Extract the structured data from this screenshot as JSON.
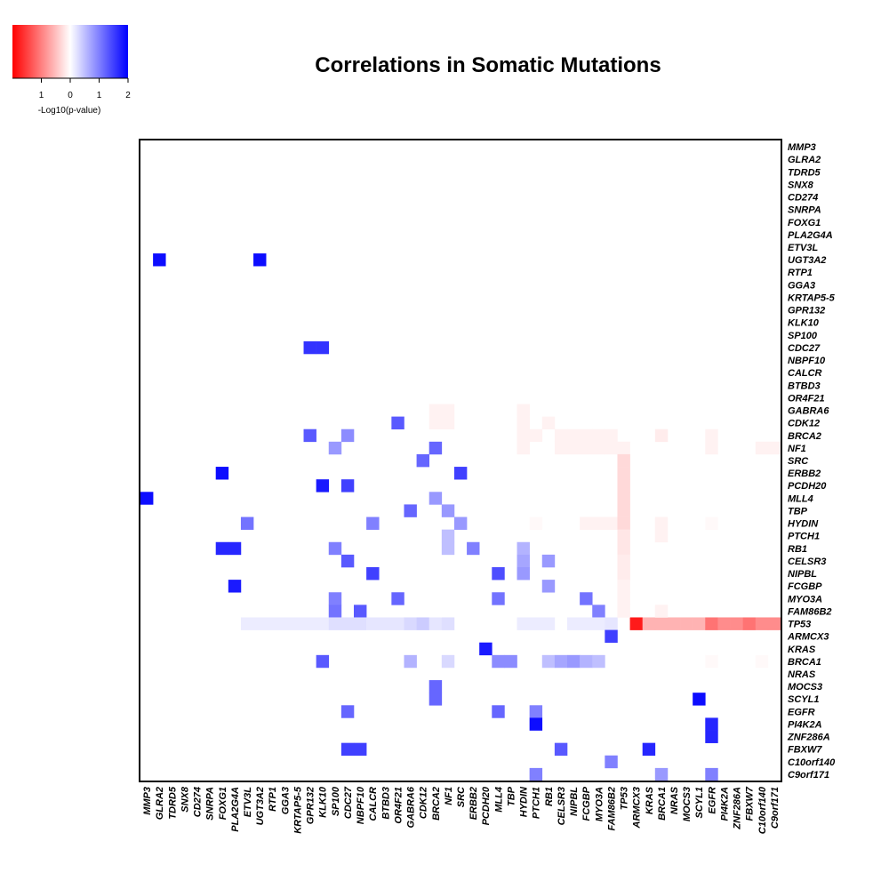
{
  "chart_data": {
    "type": "heatmap",
    "title": "Correlations in Somatic Mutations",
    "genes": [
      "MMP3",
      "GLRA2",
      "TDRD5",
      "SNX8",
      "CD274",
      "SNRPA",
      "FOXG1",
      "PLA2G4A",
      "ETV3L",
      "UGT3A2",
      "RTP1",
      "GGA3",
      "KRTAP5-5",
      "GPR132",
      "KLK10",
      "SP100",
      "CDC27",
      "NBPF10",
      "CALCR",
      "BTBD3",
      "OR4F21",
      "GABRA6",
      "CDK12",
      "BRCA2",
      "NF1",
      "SRC",
      "ERBB2",
      "PCDH20",
      "MLL4",
      "TBP",
      "HYDIN",
      "PTCH1",
      "RB1",
      "CELSR3",
      "NIPBL",
      "FCGBP",
      "MYO3A",
      "FAM86B2",
      "TP53",
      "ARMCX3",
      "KRAS",
      "BRCA1",
      "NRAS",
      "MOCS3",
      "SCYL1",
      "EGFR",
      "PI4K2A",
      "ZNF286A",
      "FBXW7",
      "C10orf140",
      "C9orf171"
    ],
    "colorscale": {
      "label": "-Log10(p-value)",
      "ticks": [
        "1",
        "0",
        "1",
        "2"
      ],
      "range": [
        -2,
        2
      ],
      "negative_color": "#ff0000",
      "zero_color": "#ffffff",
      "positive_color": "#0000ff"
    },
    "cells": [
      {
        "row": "UGT3A2",
        "col": "GLRA2",
        "value": 1.9
      },
      {
        "row": "UGT3A2",
        "col": "UGT3A2",
        "value": 1.9
      },
      {
        "row": "CDC27",
        "col": "GPR132",
        "value": 1.6
      },
      {
        "row": "CDC27",
        "col": "KLK10",
        "value": 1.6
      },
      {
        "row": "CDK12",
        "col": "OR4F21",
        "value": 1.3
      },
      {
        "row": "BRCA2",
        "col": "GPR132",
        "value": 1.3
      },
      {
        "row": "BRCA2",
        "col": "CDC27",
        "value": 0.9
      },
      {
        "row": "NF1",
        "col": "SP100",
        "value": 0.8
      },
      {
        "row": "NF1",
        "col": "BRCA2",
        "value": 1.2
      },
      {
        "row": "SRC",
        "col": "CDK12",
        "value": 1.2
      },
      {
        "row": "ERBB2",
        "col": "FOXG1",
        "value": 1.9
      },
      {
        "row": "ERBB2",
        "col": "SRC",
        "value": 1.5
      },
      {
        "row": "PCDH20",
        "col": "KLK10",
        "value": 1.8
      },
      {
        "row": "PCDH20",
        "col": "CDC27",
        "value": 1.5
      },
      {
        "row": "MLL4",
        "col": "MMP3",
        "value": 1.9
      },
      {
        "row": "MLL4",
        "col": "BRCA2",
        "value": 0.8
      },
      {
        "row": "TBP",
        "col": "GABRA6",
        "value": 1.2
      },
      {
        "row": "TBP",
        "col": "NF1",
        "value": 0.8
      },
      {
        "row": "HYDIN",
        "col": "ETV3L",
        "value": 1.1
      },
      {
        "row": "HYDIN",
        "col": "CALCR",
        "value": 1.0
      },
      {
        "row": "HYDIN",
        "col": "SRC",
        "value": 0.8
      },
      {
        "row": "PTCH1",
        "col": "NF1",
        "value": 0.5
      },
      {
        "row": "RB1",
        "col": "FOXG1",
        "value": 1.7
      },
      {
        "row": "RB1",
        "col": "PLA2G4A",
        "value": 1.7
      },
      {
        "row": "RB1",
        "col": "SP100",
        "value": 1.0
      },
      {
        "row": "RB1",
        "col": "NF1",
        "value": 0.5
      },
      {
        "row": "RB1",
        "col": "ERBB2",
        "value": 1.0
      },
      {
        "row": "RB1",
        "col": "HYDIN",
        "value": 0.6
      },
      {
        "row": "CELSR3",
        "col": "CDC27",
        "value": 1.3
      },
      {
        "row": "CELSR3",
        "col": "HYDIN",
        "value": 0.7
      },
      {
        "row": "CELSR3",
        "col": "RB1",
        "value": 0.8
      },
      {
        "row": "NIPBL",
        "col": "CALCR",
        "value": 1.5
      },
      {
        "row": "NIPBL",
        "col": "MLL4",
        "value": 1.4
      },
      {
        "row": "NIPBL",
        "col": "HYDIN",
        "value": 0.8
      },
      {
        "row": "FCGBP",
        "col": "PLA2G4A",
        "value": 1.8
      },
      {
        "row": "FCGBP",
        "col": "RB1",
        "value": 0.8
      },
      {
        "row": "MYO3A",
        "col": "SP100",
        "value": 1.0
      },
      {
        "row": "MYO3A",
        "col": "OR4F21",
        "value": 1.2
      },
      {
        "row": "MYO3A",
        "col": "MLL4",
        "value": 1.1
      },
      {
        "row": "MYO3A",
        "col": "FCGBP",
        "value": 1.1
      },
      {
        "row": "FAM86B2",
        "col": "SP100",
        "value": 1.1
      },
      {
        "row": "FAM86B2",
        "col": "NBPF10",
        "value": 1.3
      },
      {
        "row": "FAM86B2",
        "col": "MYO3A",
        "value": 1.0
      },
      {
        "row": "TP53",
        "col": "ETV3L",
        "value": 0.15
      },
      {
        "row": "TP53",
        "col": "UGT3A2",
        "value": 0.15
      },
      {
        "row": "TP53",
        "col": "RTP1",
        "value": 0.15
      },
      {
        "row": "TP53",
        "col": "GGA3",
        "value": 0.15
      },
      {
        "row": "TP53",
        "col": "KRTAP5-5",
        "value": 0.15
      },
      {
        "row": "TP53",
        "col": "GPR132",
        "value": 0.15
      },
      {
        "row": "TP53",
        "col": "KLK10",
        "value": 0.15
      },
      {
        "row": "TP53",
        "col": "SP100",
        "value": 0.25
      },
      {
        "row": "TP53",
        "col": "CDC27",
        "value": 0.25
      },
      {
        "row": "TP53",
        "col": "NBPF10",
        "value": 0.25
      },
      {
        "row": "TP53",
        "col": "CALCR",
        "value": 0.2
      },
      {
        "row": "TP53",
        "col": "BTBD3",
        "value": 0.2
      },
      {
        "row": "TP53",
        "col": "OR4F21",
        "value": 0.2
      },
      {
        "row": "TP53",
        "col": "GABRA6",
        "value": 0.3
      },
      {
        "row": "TP53",
        "col": "CDK12",
        "value": 0.4
      },
      {
        "row": "TP53",
        "col": "BRCA2",
        "value": 0.2
      },
      {
        "row": "TP53",
        "col": "NF1",
        "value": 0.25
      },
      {
        "row": "TP53",
        "col": "HYDIN",
        "value": 0.15
      },
      {
        "row": "TP53",
        "col": "PTCH1",
        "value": 0.15
      },
      {
        "row": "TP53",
        "col": "RB1",
        "value": 0.15
      },
      {
        "row": "TP53",
        "col": "NIPBL",
        "value": 0.15
      },
      {
        "row": "TP53",
        "col": "MYO3A",
        "value": 0.15
      },
      {
        "row": "TP53",
        "col": "FCGBP",
        "value": 0.15
      },
      {
        "row": "TP53",
        "col": "FAM86B2",
        "value": 0.2
      },
      {
        "row": "TP53",
        "col": "ARMCX3",
        "value": -1.8
      },
      {
        "row": "TP53",
        "col": "KRAS",
        "value": -0.6
      },
      {
        "row": "TP53",
        "col": "BRCA1",
        "value": -0.6
      },
      {
        "row": "TP53",
        "col": "NRAS",
        "value": -0.6
      },
      {
        "row": "TP53",
        "col": "MOCS3",
        "value": -0.6
      },
      {
        "row": "TP53",
        "col": "SCYL1",
        "value": -0.6
      },
      {
        "row": "TP53",
        "col": "EGFR",
        "value": -1.1
      },
      {
        "row": "TP53",
        "col": "PI4K2A",
        "value": -0.9
      },
      {
        "row": "TP53",
        "col": "ZNF286A",
        "value": -0.9
      },
      {
        "row": "TP53",
        "col": "FBXW7",
        "value": -1.1
      },
      {
        "row": "TP53",
        "col": "C10orf140",
        "value": -0.9
      },
      {
        "row": "TP53",
        "col": "C9orf171",
        "value": -0.9
      },
      {
        "row": "ARMCX3",
        "col": "FAM86B2",
        "value": 1.5
      },
      {
        "row": "KRAS",
        "col": "PCDH20",
        "value": 1.8
      },
      {
        "row": "BRCA1",
        "col": "KLK10",
        "value": 1.3
      },
      {
        "row": "BRCA1",
        "col": "GABRA6",
        "value": 0.6
      },
      {
        "row": "BRCA1",
        "col": "NF1",
        "value": 0.3
      },
      {
        "row": "BRCA1",
        "col": "MLL4",
        "value": 0.9
      },
      {
        "row": "BRCA1",
        "col": "TBP",
        "value": 0.9
      },
      {
        "row": "BRCA1",
        "col": "RB1",
        "value": 0.5
      },
      {
        "row": "BRCA1",
        "col": "CELSR3",
        "value": 0.7
      },
      {
        "row": "BRCA1",
        "col": "NIPBL",
        "value": 0.8
      },
      {
        "row": "BRCA1",
        "col": "FCGBP",
        "value": 0.6
      },
      {
        "row": "BRCA1",
        "col": "MYO3A",
        "value": 0.5
      },
      {
        "row": "MOCS3",
        "col": "BRCA2",
        "value": 1.2
      },
      {
        "row": "SCYL1",
        "col": "BRCA2",
        "value": 1.2
      },
      {
        "row": "SCYL1",
        "col": "SCYL1",
        "value": 1.9
      },
      {
        "row": "EGFR",
        "col": "CDC27",
        "value": 1.2
      },
      {
        "row": "EGFR",
        "col": "MLL4",
        "value": 1.2
      },
      {
        "row": "EGFR",
        "col": "PTCH1",
        "value": 1.0
      },
      {
        "row": "PI4K2A",
        "col": "PTCH1",
        "value": 1.9
      },
      {
        "row": "PI4K2A",
        "col": "EGFR",
        "value": 1.7
      },
      {
        "row": "ZNF286A",
        "col": "EGFR",
        "value": 1.7
      },
      {
        "row": "FBXW7",
        "col": "CDC27",
        "value": 1.5
      },
      {
        "row": "FBXW7",
        "col": "NBPF10",
        "value": 1.5
      },
      {
        "row": "FBXW7",
        "col": "CELSR3",
        "value": 1.3
      },
      {
        "row": "FBXW7",
        "col": "KRAS",
        "value": 1.7
      },
      {
        "row": "C10orf140",
        "col": "FAM86B2",
        "value": 1.0
      },
      {
        "row": "C9orf171",
        "col": "PTCH1",
        "value": 1.0
      },
      {
        "row": "C9orf171",
        "col": "BRCA1",
        "value": 0.8
      },
      {
        "row": "C9orf171",
        "col": "EGFR",
        "value": 1.0
      },
      {
        "row": "GABRA6",
        "col": "BRCA2",
        "value": -0.1
      },
      {
        "row": "GABRA6",
        "col": "NF1",
        "value": -0.1
      },
      {
        "row": "GABRA6",
        "col": "HYDIN",
        "value": -0.1
      },
      {
        "row": "CDK12",
        "col": "BRCA2",
        "value": -0.1
      },
      {
        "row": "CDK12",
        "col": "NF1",
        "value": -0.1
      },
      {
        "row": "CDK12",
        "col": "HYDIN",
        "value": -0.1
      },
      {
        "row": "CDK12",
        "col": "RB1",
        "value": -0.1
      },
      {
        "row": "BRCA2",
        "col": "HYDIN",
        "value": -0.1
      },
      {
        "row": "BRCA2",
        "col": "PTCH1",
        "value": -0.1
      },
      {
        "row": "BRCA2",
        "col": "CELSR3",
        "value": -0.1
      },
      {
        "row": "BRCA2",
        "col": "NIPBL",
        "value": -0.1
      },
      {
        "row": "BRCA2",
        "col": "FCGBP",
        "value": -0.1
      },
      {
        "row": "BRCA2",
        "col": "MYO3A",
        "value": -0.1
      },
      {
        "row": "BRCA2",
        "col": "FAM86B2",
        "value": -0.1
      },
      {
        "row": "BRCA2",
        "col": "BRCA1",
        "value": -0.15
      },
      {
        "row": "BRCA2",
        "col": "EGFR",
        "value": -0.1
      },
      {
        "row": "NF1",
        "col": "HYDIN",
        "value": -0.1
      },
      {
        "row": "NF1",
        "col": "CELSR3",
        "value": -0.1
      },
      {
        "row": "NF1",
        "col": "NIPBL",
        "value": -0.1
      },
      {
        "row": "NF1",
        "col": "FCGBP",
        "value": -0.1
      },
      {
        "row": "NF1",
        "col": "MYO3A",
        "value": -0.1
      },
      {
        "row": "NF1",
        "col": "FAM86B2",
        "value": -0.1
      },
      {
        "row": "NF1",
        "col": "TP53",
        "value": -0.1
      },
      {
        "row": "NF1",
        "col": "EGFR",
        "value": -0.1
      },
      {
        "row": "NF1",
        "col": "C10orf140",
        "value": -0.1
      },
      {
        "row": "NF1",
        "col": "C9orf171",
        "value": -0.1
      },
      {
        "row": "SRC",
        "col": "TP53",
        "value": -0.3
      },
      {
        "row": "ERBB2",
        "col": "TP53",
        "value": -0.3
      },
      {
        "row": "PCDH20",
        "col": "TP53",
        "value": -0.3
      },
      {
        "row": "MLL4",
        "col": "TP53",
        "value": -0.3
      },
      {
        "row": "TBP",
        "col": "TP53",
        "value": -0.3
      },
      {
        "row": "HYDIN",
        "col": "PTCH1",
        "value": -0.05
      },
      {
        "row": "HYDIN",
        "col": "FCGBP",
        "value": -0.1
      },
      {
        "row": "HYDIN",
        "col": "MYO3A",
        "value": -0.1
      },
      {
        "row": "HYDIN",
        "col": "FAM86B2",
        "value": -0.1
      },
      {
        "row": "HYDIN",
        "col": "TP53",
        "value": -0.3
      },
      {
        "row": "HYDIN",
        "col": "BRCA1",
        "value": -0.1
      },
      {
        "row": "HYDIN",
        "col": "EGFR",
        "value": -0.05
      },
      {
        "row": "PTCH1",
        "col": "TP53",
        "value": -0.2
      },
      {
        "row": "PTCH1",
        "col": "BRCA1",
        "value": -0.1
      },
      {
        "row": "RB1",
        "col": "TP53",
        "value": -0.2
      },
      {
        "row": "CELSR3",
        "col": "TP53",
        "value": -0.15
      },
      {
        "row": "NIPBL",
        "col": "TP53",
        "value": -0.15
      },
      {
        "row": "FCGBP",
        "col": "TP53",
        "value": -0.1
      },
      {
        "row": "MYO3A",
        "col": "TP53",
        "value": -0.1
      },
      {
        "row": "FAM86B2",
        "col": "TP53",
        "value": -0.1
      },
      {
        "row": "FAM86B2",
        "col": "BRCA1",
        "value": -0.1
      },
      {
        "row": "BRCA1",
        "col": "EGFR",
        "value": -0.05
      },
      {
        "row": "BRCA1",
        "col": "C10orf140",
        "value": -0.05
      }
    ]
  }
}
